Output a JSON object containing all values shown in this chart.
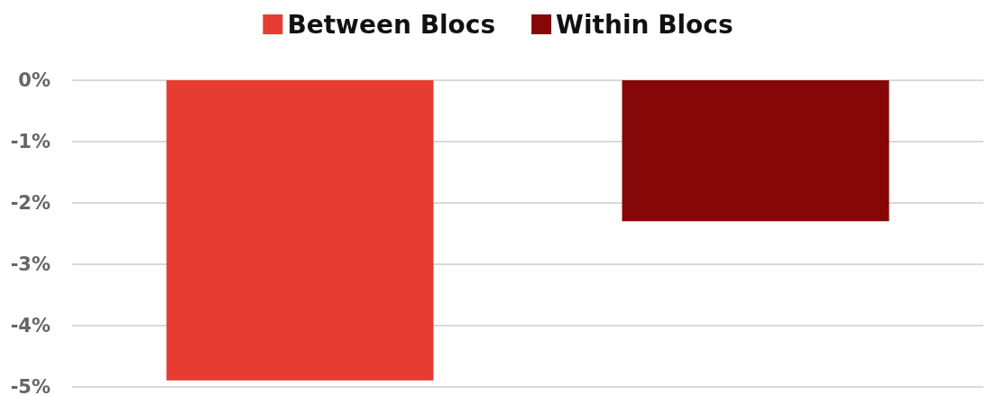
{
  "chart_data": {
    "type": "bar",
    "categories": [
      null,
      null
    ],
    "series": [
      {
        "name": "Between Blocs",
        "color": "#e63c32",
        "values": [
          -4.9,
          null
        ]
      },
      {
        "name": "Within Blocs",
        "color": "#850707",
        "values": [
          null,
          -2.3
        ]
      }
    ],
    "ylim": [
      -5,
      0
    ],
    "yticks": [
      {
        "value": -5,
        "label": "-5%"
      },
      {
        "value": -4,
        "label": "-4%"
      },
      {
        "value": -3,
        "label": "-3%"
      },
      {
        "value": -2,
        "label": "-2%"
      },
      {
        "value": -1,
        "label": "-1%"
      },
      {
        "value": 0,
        "label": "0%"
      }
    ],
    "grid": "y",
    "legend": "top"
  }
}
